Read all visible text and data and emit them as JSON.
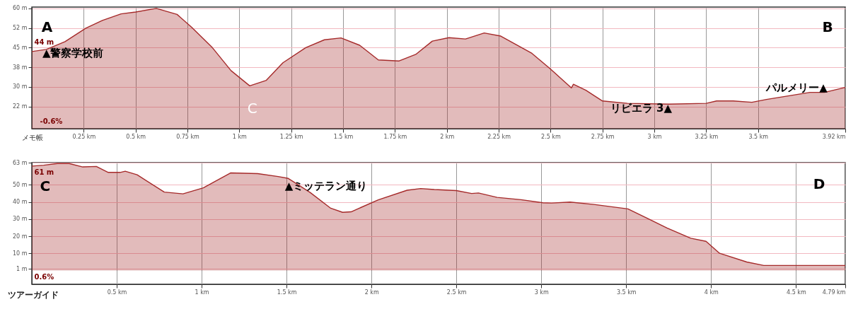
{
  "chart_data": [
    {
      "type": "area",
      "xlim": [
        0,
        3.92
      ],
      "ylim": [
        14,
        60.5
      ],
      "grid": true,
      "xticks": [
        {
          "value": 0.25,
          "label": "0.25 km"
        },
        {
          "value": 0.5,
          "label": "0.5 km"
        },
        {
          "value": 0.75,
          "label": "0.75 km"
        },
        {
          "value": 1,
          "label": "1 km"
        },
        {
          "value": 1.25,
          "label": "1.25 km"
        },
        {
          "value": 1.5,
          "label": "1.5 km"
        },
        {
          "value": 1.75,
          "label": "1.75 km"
        },
        {
          "value": 2,
          "label": "2 km"
        },
        {
          "value": 2.25,
          "label": "2.25 km"
        },
        {
          "value": 2.5,
          "label": "2.5 km"
        },
        {
          "value": 2.75,
          "label": "2.75 km"
        },
        {
          "value": 3,
          "label": "3 km"
        },
        {
          "value": 3.25,
          "label": "3.25 km"
        },
        {
          "value": 3.5,
          "label": "3.5 km"
        },
        {
          "value": 3.92,
          "label": "3.92 km"
        }
      ],
      "yticks": [
        {
          "value": 60,
          "label": "60 m"
        },
        {
          "value": 52.5,
          "label": "52 m"
        },
        {
          "value": 45,
          "label": "45 m"
        },
        {
          "value": 37.5,
          "label": "38 m"
        },
        {
          "value": 30,
          "label": "30 m"
        },
        {
          "value": 22.5,
          "label": "22 m"
        }
      ],
      "x": [
        0,
        0.07,
        0.16,
        0.26,
        0.34,
        0.43,
        0.5,
        0.6,
        0.7,
        0.77,
        0.87,
        0.96,
        1.05,
        1.13,
        1.21,
        1.32,
        1.41,
        1.49,
        1.58,
        1.67,
        1.77,
        1.85,
        1.93,
        2.01,
        2.09,
        2.18,
        2.26,
        2.41,
        2.5,
        2.6,
        2.61,
        2.67,
        2.75,
        2.87,
        3.07,
        3.25,
        3.3,
        3.38,
        3.47,
        3.54,
        3.75,
        3.82,
        3.92
      ],
      "series": [
        {
          "color": "#a52a2a",
          "values": [
            43.5,
            44.3,
            47.3,
            52.4,
            55.4,
            57.9,
            58.6,
            60,
            57.7,
            52.8,
            45,
            36.2,
            30.4,
            32.5,
            39.2,
            45,
            48,
            48.7,
            45.9,
            40.3,
            39.9,
            42.4,
            47.5,
            48.8,
            48.3,
            50.6,
            49.4,
            42.8,
            36.8,
            29.6,
            31,
            28.7,
            24.6,
            23.7,
            23.4,
            23.7,
            24.6,
            24.6,
            24.1,
            25.2,
            27.9,
            27.9,
            29.8
          ]
        }
      ],
      "annotations": [
        "A",
        "B",
        "C",
        "44 m",
        "-0.6%",
        "メモ帳",
        "▲警察学校前",
        "リビエラ 3▲",
        "パルメリー▲"
      ]
    },
    {
      "type": "area",
      "xlim": [
        0,
        4.79
      ],
      "ylim": [
        -8,
        63
      ],
      "grid": true,
      "xticks": [
        {
          "value": 0.5,
          "label": "0.5 km"
        },
        {
          "value": 1,
          "label": "1 km"
        },
        {
          "value": 1.5,
          "label": "1.5 km"
        },
        {
          "value": 2,
          "label": "2 km"
        },
        {
          "value": 2.5,
          "label": "2.5 km"
        },
        {
          "value": 3,
          "label": "3 km"
        },
        {
          "value": 3.5,
          "label": "3.5 km"
        },
        {
          "value": 4,
          "label": "4 km"
        },
        {
          "value": 4.5,
          "label": "4.5 km"
        },
        {
          "value": 4.79,
          "label": "4.79 km"
        }
      ],
      "yticks": [
        {
          "value": 63,
          "label": "63 m"
        },
        {
          "value": 50,
          "label": "50 m"
        },
        {
          "value": 40,
          "label": "40 m"
        },
        {
          "value": 30,
          "label": "30 m"
        },
        {
          "value": 20,
          "label": "20 m"
        },
        {
          "value": 10,
          "label": "10 m"
        },
        {
          "value": 1,
          "label": "1 m"
        }
      ],
      "x": [
        0,
        0.07,
        0.15,
        0.22,
        0.3,
        0.38,
        0.45,
        0.52,
        0.55,
        0.62,
        0.78,
        0.89,
        1.01,
        1.17,
        1.33,
        1.45,
        1.51,
        1.64,
        1.76,
        1.83,
        1.88,
        2.04,
        2.21,
        2.29,
        2.37,
        2.5,
        2.59,
        2.63,
        2.74,
        2.88,
        3.01,
        3.06,
        3.17,
        3.31,
        3.51,
        3.63,
        3.74,
        3.88,
        3.97,
        4.05,
        4.21,
        4.31,
        4.79
      ],
      "series": [
        {
          "color": "#a52a2a",
          "values": [
            61,
            61.5,
            62.5,
            62.5,
            60.5,
            60.8,
            57.3,
            57.3,
            58,
            55.9,
            45.8,
            44.8,
            48.3,
            57,
            56.6,
            54.9,
            53.8,
            45.5,
            36.4,
            34,
            34.3,
            41.3,
            46.9,
            47.9,
            47.3,
            46.7,
            45,
            45.3,
            42.7,
            41.4,
            39.6,
            39.4,
            40,
            38.6,
            36,
            30.2,
            24.9,
            18.9,
            17.1,
            10.1,
            5,
            3,
            3
          ]
        }
      ],
      "annotations": [
        "C",
        "D",
        "61 m",
        "0.6%",
        "ツアーガイド",
        "▲ミッテラン通り"
      ]
    }
  ]
}
